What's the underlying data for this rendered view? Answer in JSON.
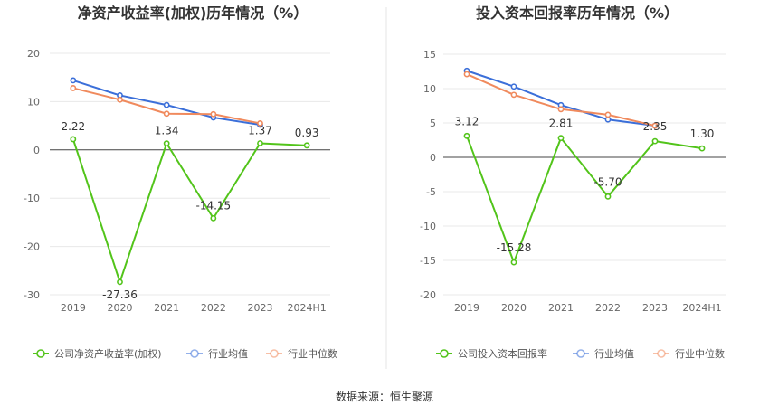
{
  "source": "数据来源：恒生聚源",
  "chart_data": [
    {
      "type": "line",
      "title": "净资产收益率(加权)历年情况（%）",
      "categories": [
        "2019",
        "2020",
        "2021",
        "2022",
        "2023",
        "2024H1"
      ],
      "ylim": [
        -30,
        20
      ],
      "yticks": [
        20,
        10,
        0,
        -10,
        -20,
        -30
      ],
      "grid": true,
      "legend_position": "bottom",
      "series": [
        {
          "name": "公司净资产收益率(加权)",
          "color": "#52c41a",
          "values": [
            2.22,
            -27.36,
            1.34,
            -14.15,
            1.37,
            0.93
          ],
          "labels": [
            "2.22",
            "-27.36",
            "1.34",
            "-14.15",
            "1.37",
            "0.93"
          ]
        },
        {
          "name": "行业均值",
          "color": "#3b6fd9",
          "values": [
            14.4,
            11.3,
            9.3,
            6.7,
            5.2,
            null
          ]
        },
        {
          "name": "行业中位数",
          "color": "#f08a5d",
          "values": [
            12.8,
            10.4,
            7.5,
            7.4,
            5.5,
            null
          ]
        }
      ]
    },
    {
      "type": "line",
      "title": "投入资本回报率历年情况（%）",
      "categories": [
        "2019",
        "2020",
        "2021",
        "2022",
        "2023",
        "2024H1"
      ],
      "ylim": [
        -20,
        15
      ],
      "yticks": [
        15,
        10,
        5,
        0,
        -5,
        -10,
        -15,
        -20
      ],
      "grid": true,
      "legend_position": "bottom",
      "series": [
        {
          "name": "公司投入资本回报率",
          "color": "#52c41a",
          "values": [
            3.12,
            -15.28,
            2.81,
            -5.7,
            2.35,
            1.3
          ],
          "labels": [
            "3.12",
            "-15.28",
            "2.81",
            "-5.70",
            "2.35",
            "1.30"
          ]
        },
        {
          "name": "行业均值",
          "color": "#3b6fd9",
          "values": [
            12.6,
            10.3,
            7.6,
            5.5,
            4.6,
            null
          ]
        },
        {
          "name": "行业中位数",
          "color": "#f08a5d",
          "values": [
            12.1,
            9.1,
            7.0,
            6.2,
            4.6,
            null
          ]
        }
      ]
    }
  ]
}
